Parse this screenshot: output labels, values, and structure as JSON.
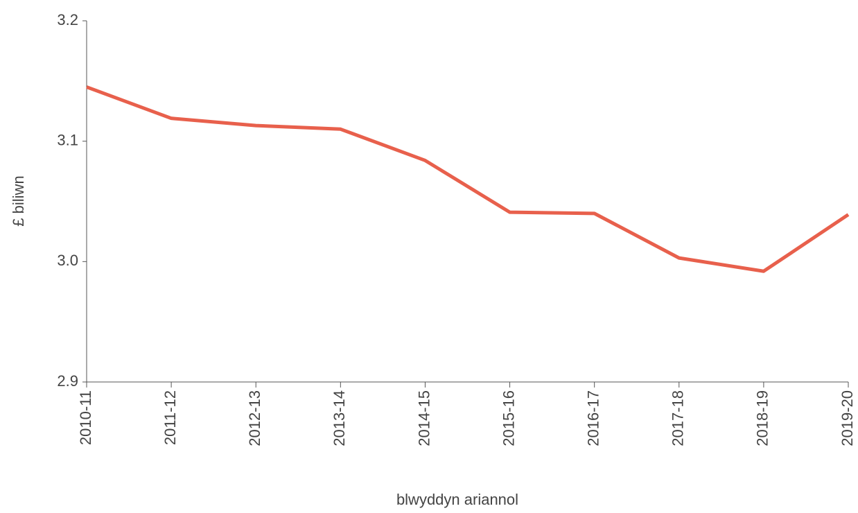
{
  "chart_data": {
    "type": "line",
    "x_label": "blwyddyn ariannol",
    "y_label": "£ biliwn",
    "categories": [
      "2010-11",
      "2011-12",
      "2012-13",
      "2013-14",
      "2014-15",
      "2015-16",
      "2016-17",
      "2017-18",
      "2018-19",
      "2019-20"
    ],
    "series": [
      {
        "name": null,
        "color": "#e8604c",
        "values": [
          3.145,
          3.119,
          3.113,
          3.11,
          3.084,
          3.041,
          3.04,
          3.003,
          2.992,
          3.039
        ]
      }
    ],
    "ylim": [
      2.9,
      3.2
    ],
    "yticks": [
      2.9,
      {
        "value": 3,
        "label": "3.0"
      },
      3.1,
      3.2
    ],
    "grid": false
  }
}
